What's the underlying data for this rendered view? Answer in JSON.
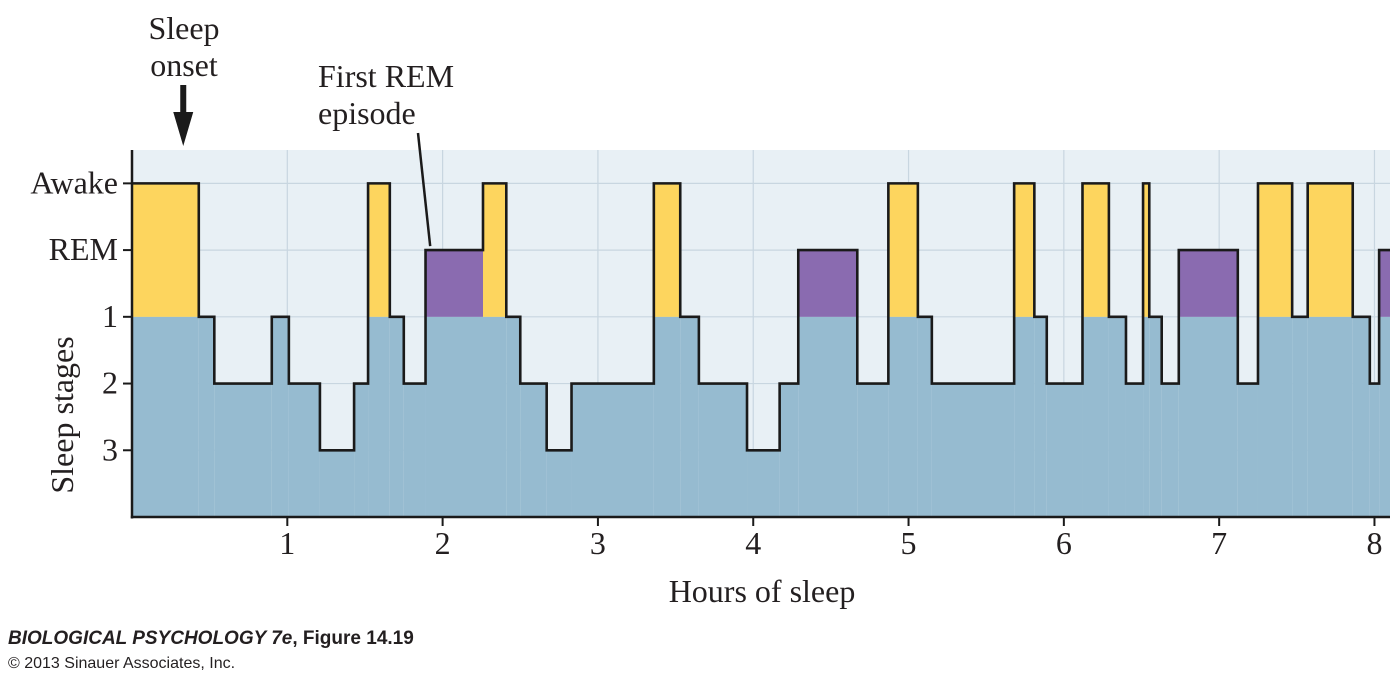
{
  "chart_data": {
    "type": "area",
    "xlabel": "Hours of sleep",
    "ylabel": "Sleep stages",
    "xlim": [
      0,
      8.1
    ],
    "x_ticks": [
      1,
      2,
      3,
      4,
      5,
      6,
      7,
      8
    ],
    "y_levels": [
      {
        "label": "Awake",
        "value": 4
      },
      {
        "label": "REM",
        "value": 3
      },
      {
        "label": "1",
        "value": 2
      },
      {
        "label": "2",
        "value": 1
      },
      {
        "label": "3",
        "value": 0
      }
    ],
    "ylim": [
      -1,
      4.5
    ],
    "annotations": {
      "sleep_onset": {
        "text_lines": [
          "Sleep",
          "onset"
        ],
        "x": 0.33
      },
      "first_rem": {
        "text_lines": [
          "First REM",
          "episode"
        ],
        "x": 1.92
      }
    },
    "segments": [
      {
        "x0": 0.0,
        "x1": 0.43,
        "stage": "Awake"
      },
      {
        "x0": 0.43,
        "x1": 0.53,
        "stage": "1"
      },
      {
        "x0": 0.53,
        "x1": 0.9,
        "stage": "2"
      },
      {
        "x0": 0.9,
        "x1": 1.01,
        "stage": "1"
      },
      {
        "x0": 1.01,
        "x1": 1.21,
        "stage": "2"
      },
      {
        "x0": 1.21,
        "x1": 1.43,
        "stage": "3"
      },
      {
        "x0": 1.43,
        "x1": 1.52,
        "stage": "2"
      },
      {
        "x0": 1.52,
        "x1": 1.66,
        "stage": "Awake"
      },
      {
        "x0": 1.66,
        "x1": 1.75,
        "stage": "1"
      },
      {
        "x0": 1.75,
        "x1": 1.89,
        "stage": "2"
      },
      {
        "x0": 1.89,
        "x1": 2.26,
        "stage": "REM"
      },
      {
        "x0": 2.26,
        "x1": 2.41,
        "stage": "Awake"
      },
      {
        "x0": 2.41,
        "x1": 2.5,
        "stage": "1"
      },
      {
        "x0": 2.5,
        "x1": 2.67,
        "stage": "2"
      },
      {
        "x0": 2.67,
        "x1": 2.83,
        "stage": "3"
      },
      {
        "x0": 2.83,
        "x1": 3.36,
        "stage": "2"
      },
      {
        "x0": 3.36,
        "x1": 3.53,
        "stage": "Awake"
      },
      {
        "x0": 3.53,
        "x1": 3.65,
        "stage": "1"
      },
      {
        "x0": 3.65,
        "x1": 3.96,
        "stage": "2"
      },
      {
        "x0": 3.96,
        "x1": 4.17,
        "stage": "3"
      },
      {
        "x0": 4.17,
        "x1": 4.29,
        "stage": "2"
      },
      {
        "x0": 4.29,
        "x1": 4.67,
        "stage": "REM"
      },
      {
        "x0": 4.67,
        "x1": 4.87,
        "stage": "2"
      },
      {
        "x0": 4.87,
        "x1": 5.06,
        "stage": "Awake"
      },
      {
        "x0": 5.06,
        "x1": 5.15,
        "stage": "1"
      },
      {
        "x0": 5.15,
        "x1": 5.68,
        "stage": "2"
      },
      {
        "x0": 5.68,
        "x1": 5.81,
        "stage": "Awake"
      },
      {
        "x0": 5.81,
        "x1": 5.89,
        "stage": "1"
      },
      {
        "x0": 5.89,
        "x1": 6.12,
        "stage": "2"
      },
      {
        "x0": 6.12,
        "x1": 6.29,
        "stage": "Awake"
      },
      {
        "x0": 6.29,
        "x1": 6.4,
        "stage": "1"
      },
      {
        "x0": 6.4,
        "x1": 6.51,
        "stage": "2"
      },
      {
        "x0": 6.51,
        "x1": 6.55,
        "stage": "Awake"
      },
      {
        "x0": 6.55,
        "x1": 6.63,
        "stage": "1"
      },
      {
        "x0": 6.63,
        "x1": 6.74,
        "stage": "2"
      },
      {
        "x0": 6.74,
        "x1": 7.12,
        "stage": "REM"
      },
      {
        "x0": 7.12,
        "x1": 7.25,
        "stage": "2"
      },
      {
        "x0": 7.25,
        "x1": 7.47,
        "stage": "Awake"
      },
      {
        "x0": 7.47,
        "x1": 7.57,
        "stage": "1"
      },
      {
        "x0": 7.57,
        "x1": 7.86,
        "stage": "Awake"
      },
      {
        "x0": 7.86,
        "x1": 7.97,
        "stage": "1"
      },
      {
        "x0": 7.97,
        "x1": 8.03,
        "stage": "2"
      },
      {
        "x0": 8.03,
        "x1": 8.1,
        "stage": "REM"
      }
    ],
    "colors": {
      "background": "#e8f0f5",
      "sleep_fill": "#96bbd0",
      "awake_fill": "#fdd55e",
      "rem_fill": "#8a6bb0",
      "line": "#1a1a1a",
      "grid": "#c8d6e0"
    },
    "grid": true
  },
  "caption": {
    "book": "BIOLOGICAL PSYCHOLOGY 7e",
    "figure": ", Figure 14.19",
    "copyright": "© 2013 Sinauer Associates, Inc."
  }
}
